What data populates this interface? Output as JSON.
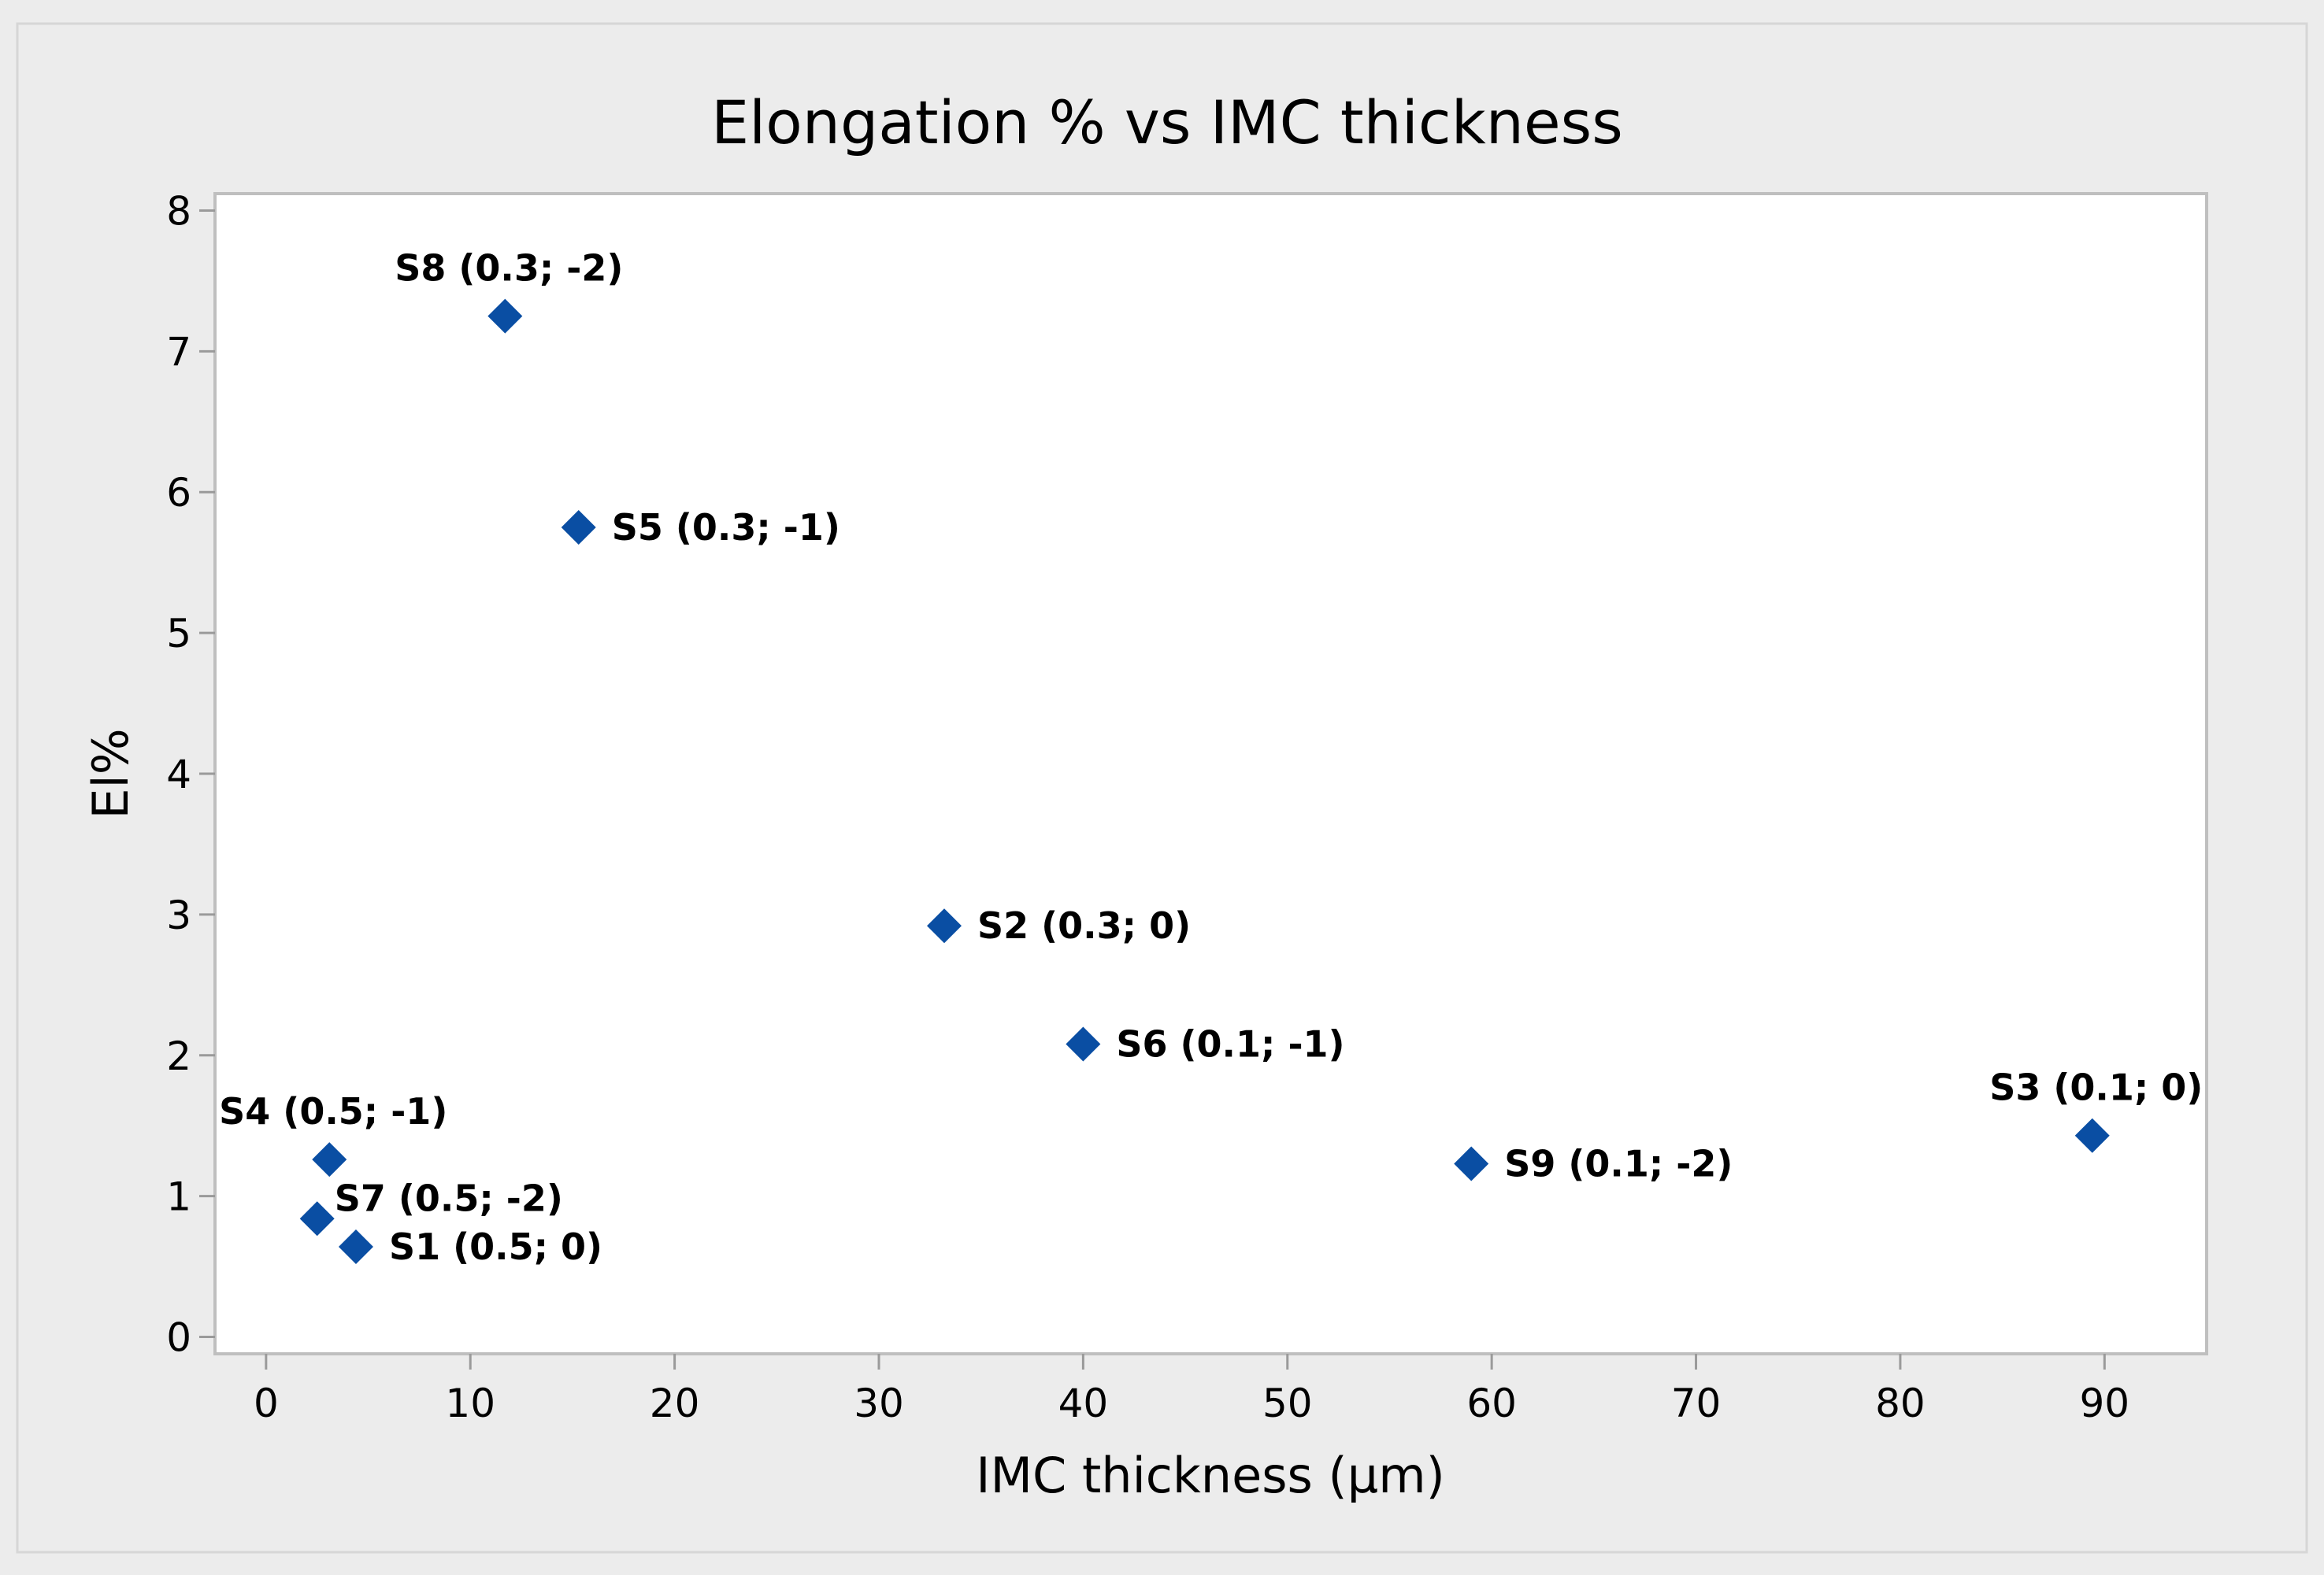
{
  "chart_data": {
    "type": "scatter",
    "title": "Elongation % vs IMC thickness",
    "xlabel": "IMC thickness (µm)",
    "ylabel": "El%",
    "xlim": [
      -2.5,
      95
    ],
    "ylim": [
      -0.12,
      8.12
    ],
    "xticks": [
      0,
      10,
      20,
      30,
      40,
      50,
      60,
      70,
      80,
      90
    ],
    "yticks": [
      0,
      1,
      2,
      3,
      4,
      5,
      6,
      7,
      8
    ],
    "grid": false,
    "marker": "diamond",
    "colors": {
      "marker": "#0a4ea3",
      "outer_background": "#ececec",
      "plot_background": "#ffffff",
      "frame": "#bfbfbf"
    },
    "points": [
      {
        "label": "S8 (0.3; -2)",
        "x": 11.7,
        "y": 7.25,
        "label_pos": "above"
      },
      {
        "label": "S5 (0.3; -1)",
        "x": 15.3,
        "y": 5.75,
        "label_pos": "right"
      },
      {
        "label": "S2 (0.3; 0)",
        "x": 33.2,
        "y": 2.92,
        "label_pos": "right"
      },
      {
        "label": "S6 (0.1; -1)",
        "x": 40.0,
        "y": 2.08,
        "label_pos": "right"
      },
      {
        "label": "S3 (0.1; 0)",
        "x": 89.4,
        "y": 1.43,
        "label_pos": "above"
      },
      {
        "label": "S9 (0.1; -2)",
        "x": 59.0,
        "y": 1.23,
        "label_pos": "right"
      },
      {
        "label": "S4 (0.5; -1)",
        "x": 3.1,
        "y": 1.26,
        "label_pos": "above"
      },
      {
        "label": "S7 (0.5; -2)",
        "x": 2.5,
        "y": 0.84,
        "label_pos": "above-right"
      },
      {
        "label": "S1 (0.5; 0)",
        "x": 4.4,
        "y": 0.64,
        "label_pos": "right"
      }
    ]
  }
}
